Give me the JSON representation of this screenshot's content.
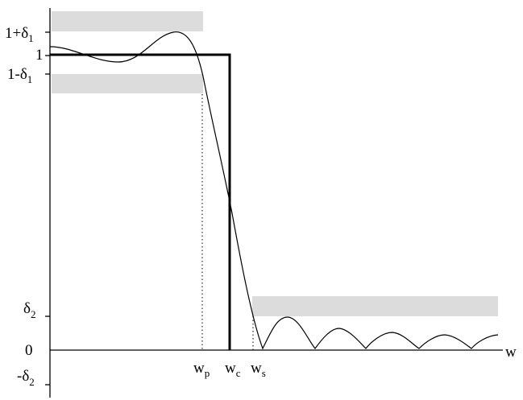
{
  "labels": {
    "one_plus_delta1": {
      "main": "1+δ",
      "sub": "1"
    },
    "one": "1",
    "one_minus_delta1": {
      "main": "1-δ",
      "sub": "1"
    },
    "delta2": {
      "main": "δ",
      "sub": "2"
    },
    "zero": "0",
    "minus_delta2": {
      "main": "-δ",
      "sub": "2"
    },
    "wp": {
      "main": "w",
      "sub": "p"
    },
    "wc": {
      "main": "w",
      "sub": "c"
    },
    "ws": {
      "main": "w",
      "sub": "s"
    },
    "x_axis": "w"
  },
  "colors": {
    "tolerance_band": "#dcdcdc",
    "ink": "#000000"
  }
}
